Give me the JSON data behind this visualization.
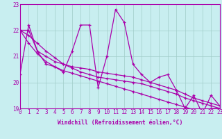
{
  "xlabel": "Windchill (Refroidissement éolien,°C)",
  "background_color": "#c8eef0",
  "grid_color": "#a0ccc8",
  "line_color": "#aa00aa",
  "xmin": 0,
  "xmax": 23,
  "ymin": 19,
  "ymax": 23,
  "yticks": [
    19,
    20,
    21,
    22,
    23
  ],
  "xticks": [
    0,
    1,
    2,
    3,
    4,
    5,
    6,
    7,
    8,
    9,
    10,
    11,
    12,
    13,
    14,
    15,
    16,
    17,
    18,
    19,
    20,
    21,
    22,
    23
  ],
  "series": [
    [
      20.3,
      22.2,
      21.2,
      20.7,
      20.6,
      20.4,
      21.2,
      22.2,
      22.2,
      19.8,
      21.0,
      22.8,
      22.3,
      20.7,
      20.3,
      20.0,
      20.2,
      20.3,
      19.7,
      19.0,
      19.5,
      18.8,
      19.5,
      19.1
    ],
    [
      22.0,
      22.0,
      21.2,
      21.0,
      20.8,
      20.7,
      20.6,
      20.55,
      20.5,
      20.4,
      20.35,
      20.3,
      20.25,
      20.2,
      20.1,
      20.0,
      19.9,
      19.8,
      19.7,
      19.55,
      19.4,
      19.3,
      19.2,
      19.1
    ],
    [
      22.0,
      21.8,
      21.5,
      21.2,
      20.95,
      20.7,
      20.55,
      20.4,
      20.3,
      20.2,
      20.15,
      20.1,
      20.05,
      20.0,
      19.95,
      19.85,
      19.75,
      19.65,
      19.55,
      19.4,
      19.3,
      19.2,
      19.1,
      19.0
    ],
    [
      22.0,
      21.5,
      21.1,
      20.8,
      20.6,
      20.45,
      20.35,
      20.25,
      20.15,
      20.05,
      19.95,
      19.85,
      19.75,
      19.65,
      19.55,
      19.45,
      19.35,
      19.25,
      19.15,
      19.05,
      18.95,
      18.88,
      19.0,
      19.0
    ]
  ],
  "figwidth": 3.2,
  "figheight": 2.0,
  "dpi": 100,
  "tick_fontsize": 5.5,
  "xlabel_fontsize": 5.8,
  "linewidth": 0.9,
  "markersize": 3.5,
  "markeredgewidth": 0.9
}
